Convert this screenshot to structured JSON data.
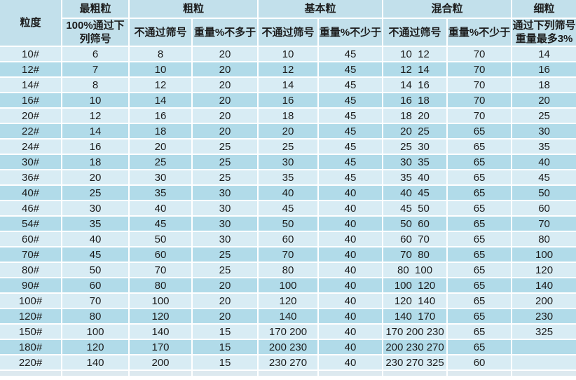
{
  "colors": {
    "header_bg": "#c2e0eb",
    "row_light": "#d8ecf4",
    "row_dark": "#b1dbe9",
    "gridline": "#ffffff",
    "text": "#1c1c1c"
  },
  "header": {
    "size_col": "粒度",
    "groups": [
      {
        "label": "最粗粒",
        "subs": [
          "100%通过下\n列筛号"
        ]
      },
      {
        "label": "粗粒",
        "subs": [
          "不通过筛号",
          "重量%不多于"
        ]
      },
      {
        "label": "基本粒",
        "subs": [
          "不通过筛号",
          "重量%不少于"
        ]
      },
      {
        "label": "混合粒",
        "subs": [
          "不通过筛号",
          "重量%不少于"
        ]
      },
      {
        "label": "细粒",
        "subs": [
          "通过下列筛号\n重量最多3%"
        ]
      }
    ]
  },
  "rows": [
    [
      "10#",
      "6",
      "8",
      "20",
      "10",
      "45",
      "10  12",
      "70",
      "14"
    ],
    [
      "12#",
      "7",
      "10",
      "20",
      "12",
      "45",
      "12  14",
      "70",
      "16"
    ],
    [
      "14#",
      "8",
      "12",
      "20",
      "14",
      "45",
      "14  16",
      "70",
      "18"
    ],
    [
      "16#",
      "10",
      "14",
      "20",
      "16",
      "45",
      "16  18",
      "70",
      "20"
    ],
    [
      "20#",
      "12",
      "16",
      "20",
      "18",
      "45",
      "18  20",
      "70",
      "25"
    ],
    [
      "22#",
      "14",
      "18",
      "20",
      "20",
      "45",
      "20  25",
      "65",
      "30"
    ],
    [
      "24#",
      "16",
      "20",
      "25",
      "25",
      "45",
      "25  30",
      "65",
      "35"
    ],
    [
      "30#",
      "18",
      "25",
      "25",
      "30",
      "45",
      "30  35",
      "65",
      "40"
    ],
    [
      "36#",
      "20",
      "30",
      "25",
      "35",
      "45",
      "35  40",
      "65",
      "45"
    ],
    [
      "40#",
      "25",
      "35",
      "30",
      "40",
      "40",
      "40  45",
      "65",
      "50"
    ],
    [
      "46#",
      "30",
      "40",
      "30",
      "45",
      "40",
      "45  50",
      "65",
      "60"
    ],
    [
      "54#",
      "35",
      "45",
      "30",
      "50",
      "40",
      "50  60",
      "65",
      "70"
    ],
    [
      "60#",
      "40",
      "50",
      "30",
      "60",
      "40",
      "60  70",
      "65",
      "80"
    ],
    [
      "70#",
      "45",
      "60",
      "25",
      "70",
      "40",
      "70  80",
      "65",
      "100"
    ],
    [
      "80#",
      "50",
      "70",
      "25",
      "80",
      "40",
      "80  100",
      "65",
      "120"
    ],
    [
      "90#",
      "60",
      "80",
      "20",
      "100",
      "40",
      "100  120",
      "65",
      "140"
    ],
    [
      "100#",
      "70",
      "100",
      "20",
      "120",
      "40",
      "120  140",
      "65",
      "200"
    ],
    [
      "120#",
      "80",
      "120",
      "20",
      "140",
      "40",
      "140  170",
      "65",
      "230"
    ],
    [
      "150#",
      "100",
      "140",
      "15",
      "170 200",
      "40",
      "170 200 230",
      "65",
      "325"
    ],
    [
      "180#",
      "120",
      "170",
      "15",
      "200 230",
      "40",
      "200 230 270",
      "65",
      ""
    ],
    [
      "220#",
      "140",
      "200",
      "15",
      "230 270",
      "40",
      "230 270 325",
      "60",
      ""
    ]
  ]
}
